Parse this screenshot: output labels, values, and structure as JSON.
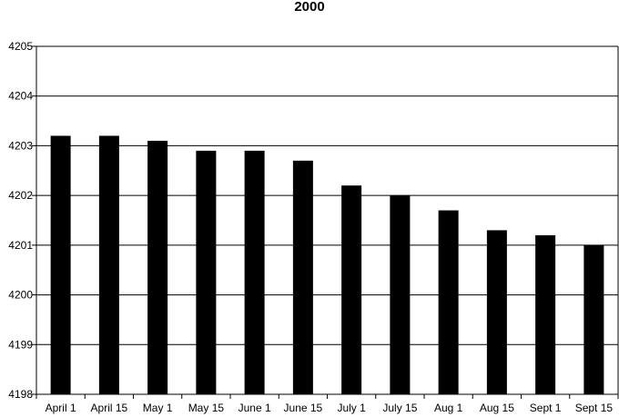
{
  "chart_data": {
    "type": "bar",
    "title": "2000",
    "categories": [
      "April 1",
      "April 15",
      "May 1",
      "May 15",
      "June 1",
      "June 15",
      "July 1",
      "July 15",
      "Aug 1",
      "Aug 15",
      "Sept 1",
      "Sept 15"
    ],
    "values": [
      4203.2,
      4203.2,
      4203.1,
      4202.9,
      4202.9,
      4202.7,
      4202.2,
      4202.0,
      4201.7,
      4201.3,
      4201.2,
      4201.0
    ],
    "ylim": [
      4198,
      4205
    ],
    "yticks": [
      "4198",
      "4199",
      "4200",
      "4201",
      "4202",
      "4203",
      "4204",
      "4205"
    ],
    "grid": true,
    "bar_color": "#000000",
    "xlabel": "",
    "ylabel": ""
  }
}
